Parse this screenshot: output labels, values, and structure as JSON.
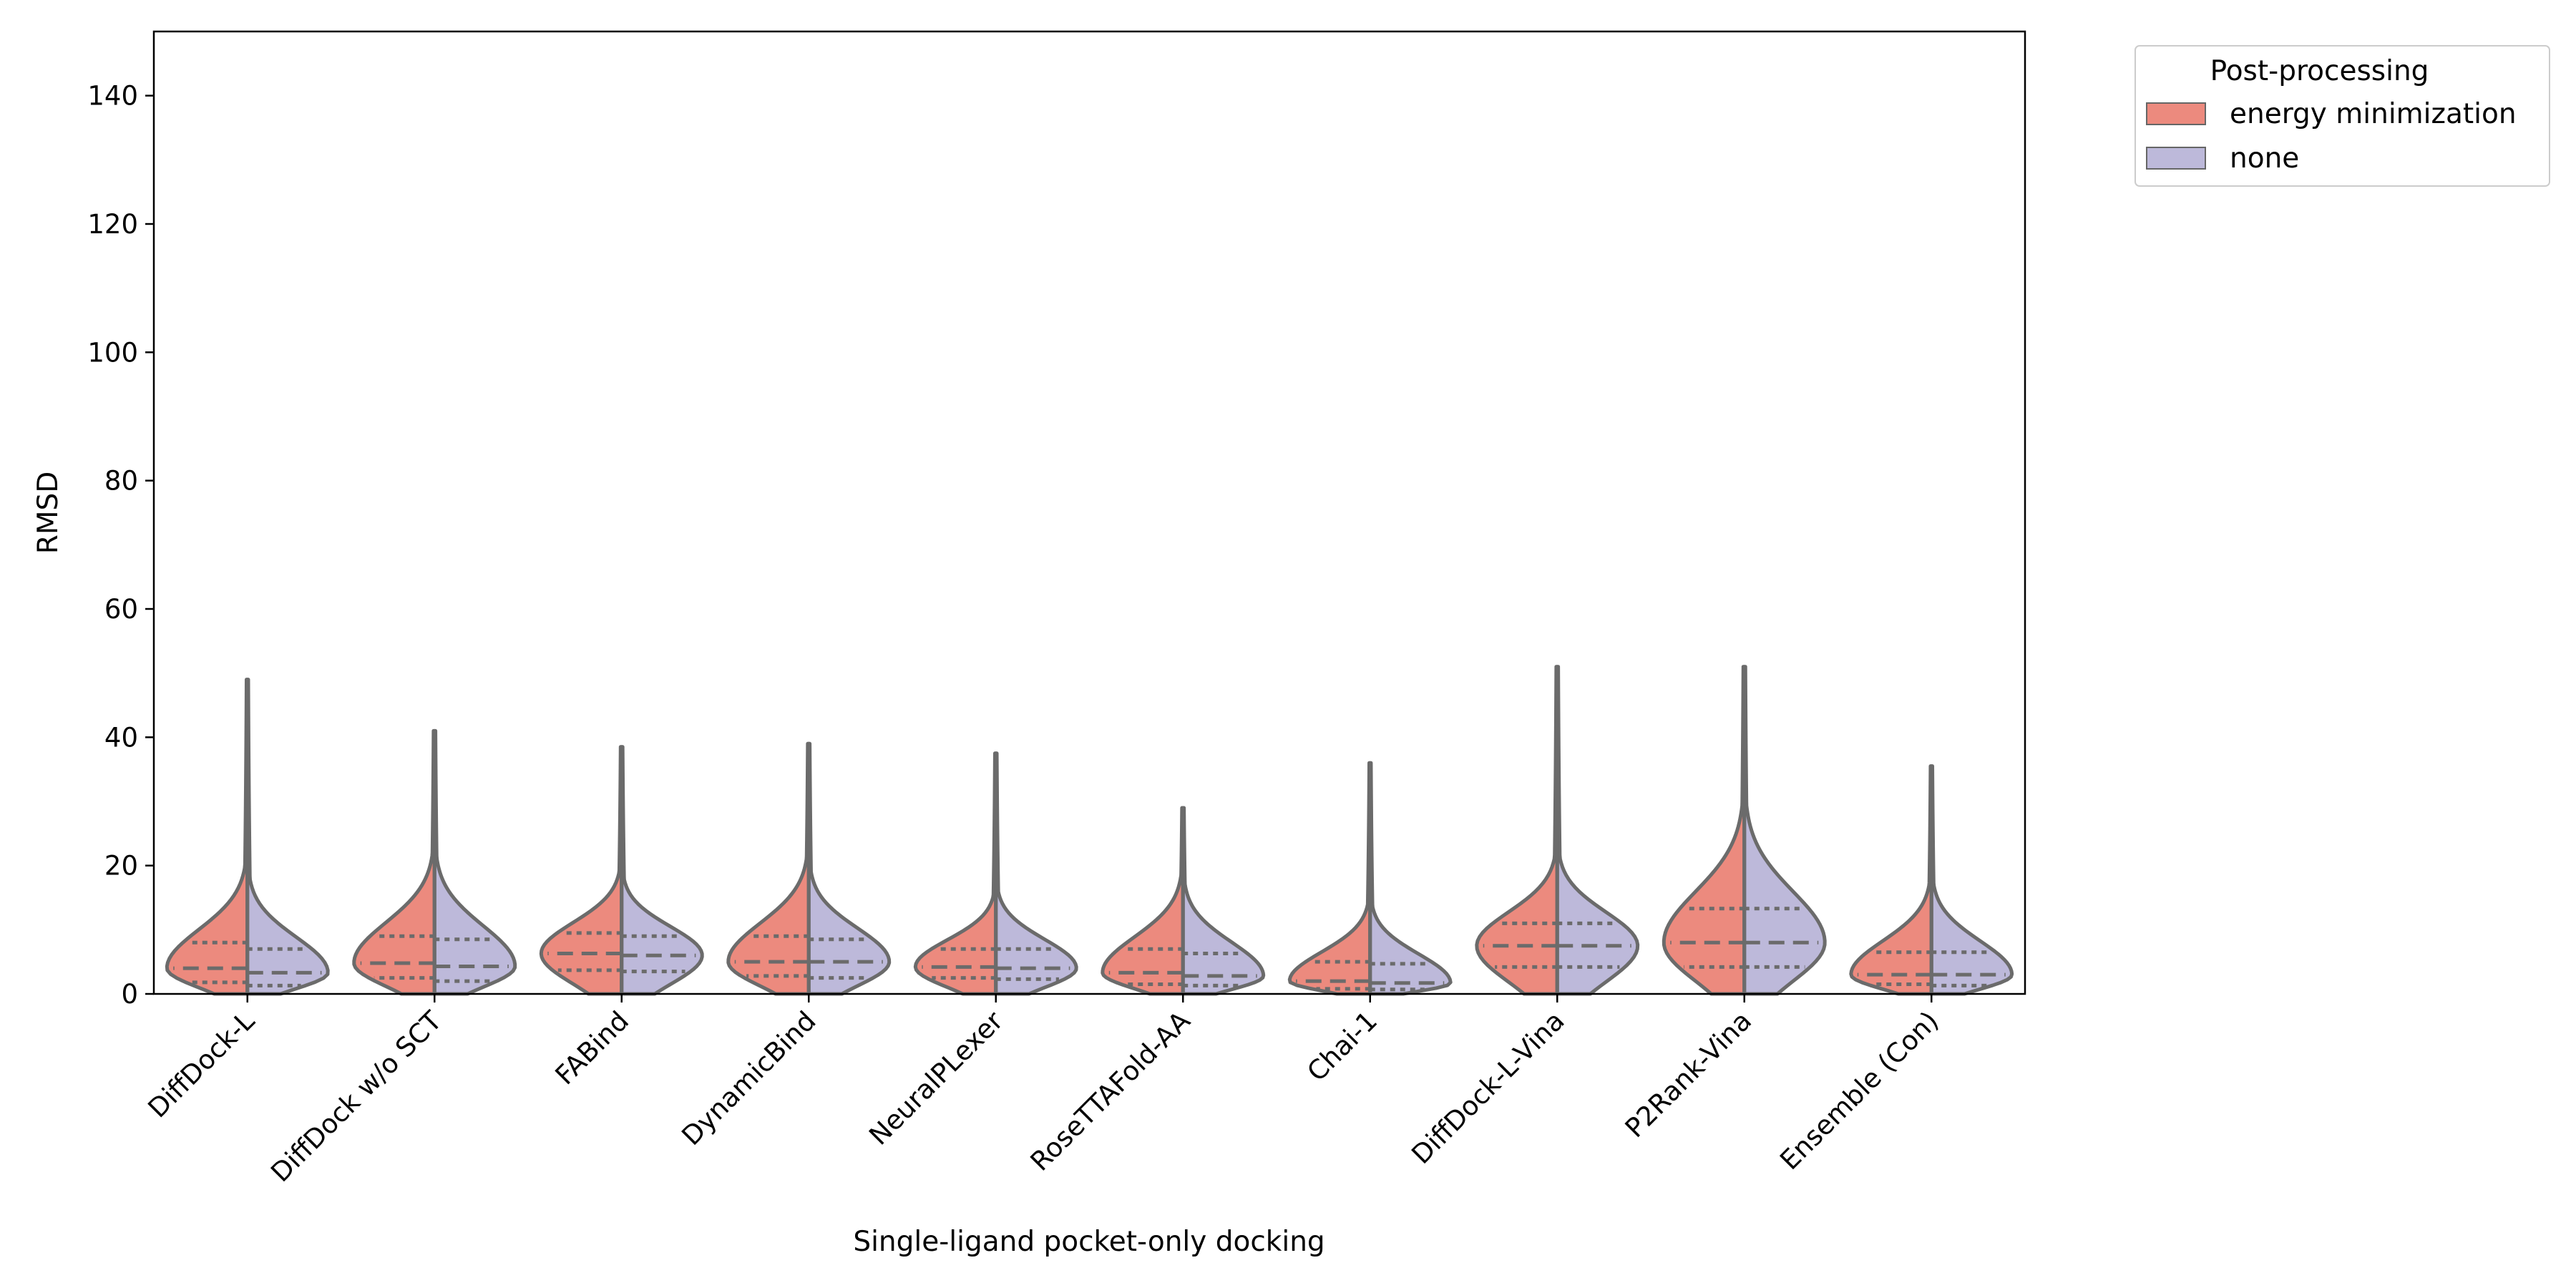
{
  "chart_data": {
    "type": "violin",
    "xlabel": "Single-ligand pocket-only docking",
    "ylabel": "RMSD",
    "ylim": [
      0,
      150
    ],
    "yticks": [
      0,
      20,
      40,
      60,
      80,
      100,
      120,
      140
    ],
    "grid": false,
    "legend_placement": "outside-top-right",
    "categories": [
      "DiffDock-L",
      "DiffDock w/o SCT",
      "FABind",
      "DynamicBind",
      "NeuralPLexer",
      "RoseTTAFold-AA",
      "Chai-1",
      "DiffDock-L-Vina",
      "P2Rank-Vina",
      "Ensemble (Con)"
    ],
    "legend": {
      "title": "Post-processing",
      "entries": [
        "energy minimization",
        "none"
      ]
    },
    "series": [
      {
        "name": "energy minimization",
        "color": "#ec8a7e",
        "max": [
          49,
          41,
          38.5,
          39,
          37.5,
          29,
          36,
          51,
          51,
          35.5
        ],
        "q1": [
          1.8,
          2.5,
          3.7,
          2.8,
          2.5,
          1.5,
          0.8,
          4.2,
          4.2,
          1.5
        ],
        "median": [
          4,
          4.8,
          6.3,
          5,
          4.2,
          3.3,
          2,
          7.5,
          8,
          3
        ],
        "q3": [
          8,
          9,
          9.5,
          9,
          7,
          7,
          5,
          11,
          13.3,
          6.5
        ]
      },
      {
        "name": "none",
        "color": "#bdb9da",
        "max": [
          49,
          41,
          38.5,
          39,
          37.5,
          29,
          36,
          51,
          51,
          35.5
        ],
        "q1": [
          1.3,
          2,
          3.5,
          2.5,
          2.3,
          1.3,
          0.7,
          4.2,
          4.2,
          1.3
        ],
        "median": [
          3.3,
          4.3,
          6,
          5,
          4,
          2.8,
          1.7,
          7.5,
          8,
          3
        ],
        "q3": [
          7,
          8.5,
          9,
          8.5,
          7,
          6.3,
          4.7,
          11,
          13.3,
          6.5
        ]
      }
    ]
  }
}
